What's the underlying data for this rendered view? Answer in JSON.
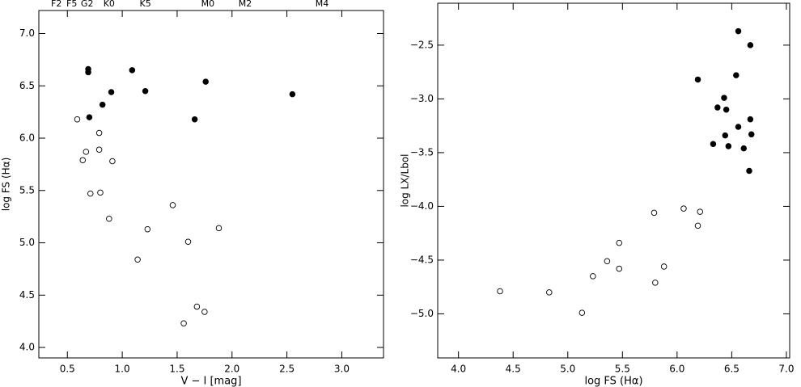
{
  "chart_data": [
    {
      "type": "scatter",
      "x_label": "V − I [mag]",
      "y_label": "log FS (Hα)",
      "xlim": [
        0.24,
        3.38
      ],
      "ylim": [
        3.9,
        7.22
      ],
      "xticks": [
        {
          "value": 0.5,
          "label": "0.5"
        },
        {
          "value": 1,
          "label": "1.0"
        },
        {
          "value": 1.5,
          "label": "1.5"
        },
        {
          "value": 2,
          "label": "2.0"
        },
        {
          "value": 2.5,
          "label": "2.5"
        },
        {
          "value": 3,
          "label": "3.0"
        }
      ],
      "yticks": [
        {
          "value": 4,
          "label": "4.0"
        },
        {
          "value": 4.5,
          "label": "4.5"
        },
        {
          "value": 5,
          "label": "5.0"
        },
        {
          "value": 5.5,
          "label": "5.5"
        },
        {
          "value": 6,
          "label": "6.0"
        },
        {
          "value": 6.5,
          "label": "6.5"
        },
        {
          "value": 7,
          "label": "7.0"
        }
      ],
      "top_labels": [
        {
          "value": 0.4,
          "label": "F2"
        },
        {
          "value": 0.54,
          "label": "F5"
        },
        {
          "value": 0.68,
          "label": "G2"
        },
        {
          "value": 0.88,
          "label": "K0"
        },
        {
          "value": 1.21,
          "label": "K5"
        },
        {
          "value": 1.78,
          "label": "M0"
        },
        {
          "value": 2.12,
          "label": "M2"
        },
        {
          "value": 2.82,
          "label": "M4"
        }
      ],
      "series": [
        {
          "color": "#000000",
          "filled": true,
          "x": [
            0.69,
            0.69,
            1.09,
            0.7,
            0.9,
            0.82,
            1.21,
            1.76,
            1.66,
            2.55
          ],
          "values": [
            6.66,
            6.63,
            6.65,
            6.2,
            6.44,
            6.32,
            6.45,
            6.54,
            6.18,
            6.42
          ]
        },
        {
          "color": "#000000",
          "filled": false,
          "x": [
            0.59,
            0.79,
            0.67,
            0.79,
            0.64,
            0.91,
            0.71,
            0.8,
            0.88,
            1.46,
            1.23,
            1.6,
            1.88,
            1.14,
            1.68,
            1.75,
            1.56
          ],
          "values": [
            6.18,
            6.05,
            5.87,
            5.89,
            5.79,
            5.78,
            5.47,
            5.48,
            5.23,
            5.36,
            5.13,
            5.01,
            5.14,
            4.84,
            4.39,
            4.34,
            4.23
          ]
        }
      ]
    },
    {
      "type": "scatter",
      "x_label": "log FS (Hα)",
      "y_label": "log LX/Lbol",
      "xlim": [
        3.81,
        7.03
      ],
      "ylim": [
        -5.41,
        -2.11
      ],
      "xticks": [
        {
          "value": 4,
          "label": "4.0"
        },
        {
          "value": 4.5,
          "label": "4.5"
        },
        {
          "value": 5,
          "label": "5.0"
        },
        {
          "value": 5.5,
          "label": "5.5"
        },
        {
          "value": 6,
          "label": "6.0"
        },
        {
          "value": 6.5,
          "label": "6.5"
        },
        {
          "value": 7,
          "label": "7.0"
        }
      ],
      "yticks": [
        {
          "value": -5,
          "label": "−5.0"
        },
        {
          "value": -4.5,
          "label": "−4.5"
        },
        {
          "value": -4,
          "label": "−4.0"
        },
        {
          "value": -3.5,
          "label": "−3.5"
        },
        {
          "value": -3,
          "label": "−3.0"
        },
        {
          "value": -2.5,
          "label": "−2.5"
        }
      ],
      "series": [
        {
          "color": "#000000",
          "filled": true,
          "x": [
            6.56,
            6.67,
            6.19,
            6.54,
            6.43,
            6.37,
            6.45,
            6.67,
            6.56,
            6.44,
            6.68,
            6.33,
            6.47,
            6.61,
            6.66
          ],
          "values": [
            -2.37,
            -2.5,
            -2.82,
            -2.78,
            -2.99,
            -3.08,
            -3.1,
            -3.19,
            -3.26,
            -3.34,
            -3.33,
            -3.42,
            -3.44,
            -3.46,
            -3.67
          ]
        },
        {
          "color": "#000000",
          "filled": false,
          "x": [
            4.38,
            4.83,
            5.13,
            5.23,
            5.36,
            5.47,
            5.47,
            5.79,
            5.8,
            5.88,
            6.06,
            6.21,
            6.19
          ],
          "values": [
            -4.79,
            -4.8,
            -4.99,
            -4.65,
            -4.51,
            -4.34,
            -4.58,
            -4.06,
            -4.71,
            -4.56,
            -4.02,
            -4.05,
            -4.18
          ]
        }
      ]
    }
  ]
}
